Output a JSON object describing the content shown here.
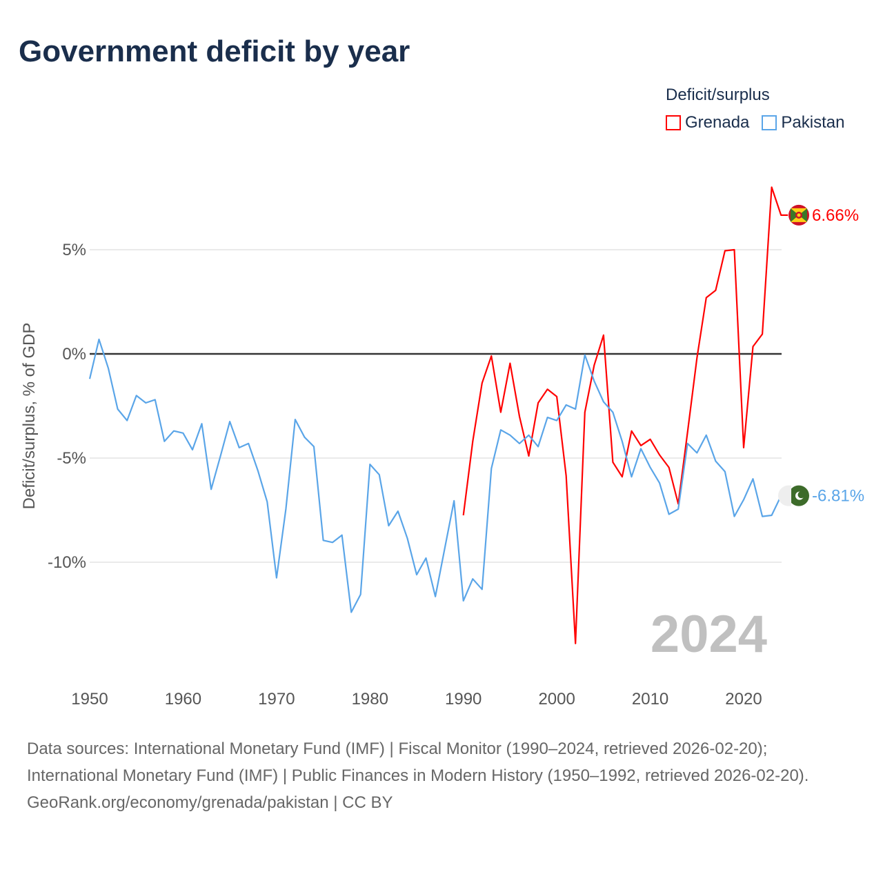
{
  "title": "Government deficit by year",
  "legend": {
    "title": "Deficit/surplus",
    "items": [
      {
        "name": "Grenada",
        "color": "#ff0000"
      },
      {
        "name": "Pakistan",
        "color": "#5aa5e8"
      }
    ]
  },
  "chart_data": {
    "type": "line",
    "title": "Government deficit by year",
    "xlabel": "",
    "ylabel": "Deficit/surplus, % of GDP",
    "xlim": [
      1950,
      2024
    ],
    "ylim": [
      -15,
      9
    ],
    "x_ticks": [
      1950,
      1960,
      1970,
      1980,
      1990,
      2000,
      2010,
      2020
    ],
    "y_ticks": [
      {
        "v": 5,
        "label": "5%"
      },
      {
        "v": 0,
        "label": "0%"
      },
      {
        "v": -5,
        "label": "-5%"
      },
      {
        "v": -10,
        "label": "-10%"
      }
    ],
    "year_watermark": "2024",
    "series": [
      {
        "name": "Grenada",
        "color": "#ff0000",
        "start": 1990,
        "end_label": "6.66%",
        "values": [
          -7.75,
          -4.2,
          -1.4,
          -0.1,
          -2.8,
          -0.45,
          -3.0,
          -4.9,
          -2.35,
          -1.7,
          -2.05,
          -5.85,
          -13.9,
          -2.8,
          -0.55,
          0.9,
          -5.2,
          -5.9,
          -3.7,
          -4.4,
          -4.1,
          -4.85,
          -5.45,
          -7.2,
          -3.75,
          -0.2,
          2.7,
          3.05,
          4.95,
          5.0,
          -4.5,
          0.35,
          0.95,
          8.0,
          6.66
        ]
      },
      {
        "name": "Pakistan",
        "color": "#5aa5e8",
        "start": 1950,
        "end_label": "-6.81%",
        "values": [
          -1.2,
          0.7,
          -0.7,
          -2.65,
          -3.2,
          -2.0,
          -2.35,
          -2.2,
          -4.2,
          -3.7,
          -3.8,
          -4.6,
          -3.35,
          -6.5,
          -4.9,
          -3.25,
          -4.5,
          -4.3,
          -5.6,
          -7.1,
          -10.75,
          -7.45,
          -3.15,
          -4.0,
          -4.45,
          -8.95,
          -9.05,
          -8.7,
          -12.4,
          -11.55,
          -5.3,
          -5.8,
          -8.25,
          -7.55,
          -8.85,
          -10.6,
          -9.8,
          -11.65,
          -9.35,
          -7.05,
          -11.85,
          -10.8,
          -11.3,
          -5.5,
          -3.65,
          -3.9,
          -4.3,
          -3.9,
          -4.45,
          -3.05,
          -3.2,
          -2.45,
          -2.65,
          -0.05,
          -1.3,
          -2.3,
          -2.8,
          -4.2,
          -5.9,
          -4.55,
          -5.45,
          -6.2,
          -7.7,
          -7.45,
          -4.3,
          -4.75,
          -3.9,
          -5.15,
          -5.65,
          -7.8,
          -7.0,
          -6.0,
          -7.8,
          -7.75,
          -6.81
        ]
      }
    ]
  },
  "sources": {
    "line1": "Data sources: International Monetary Fund (IMF) | Fiscal Monitor (1990–2024, retrieved 2026-02-20); International Monetary Fund (IMF) | Public Finances in Modern History (1950–1992, retrieved 2026-02-20).",
    "line2": "GeoRank.org/economy/grenada/pakistan | CC BY"
  }
}
